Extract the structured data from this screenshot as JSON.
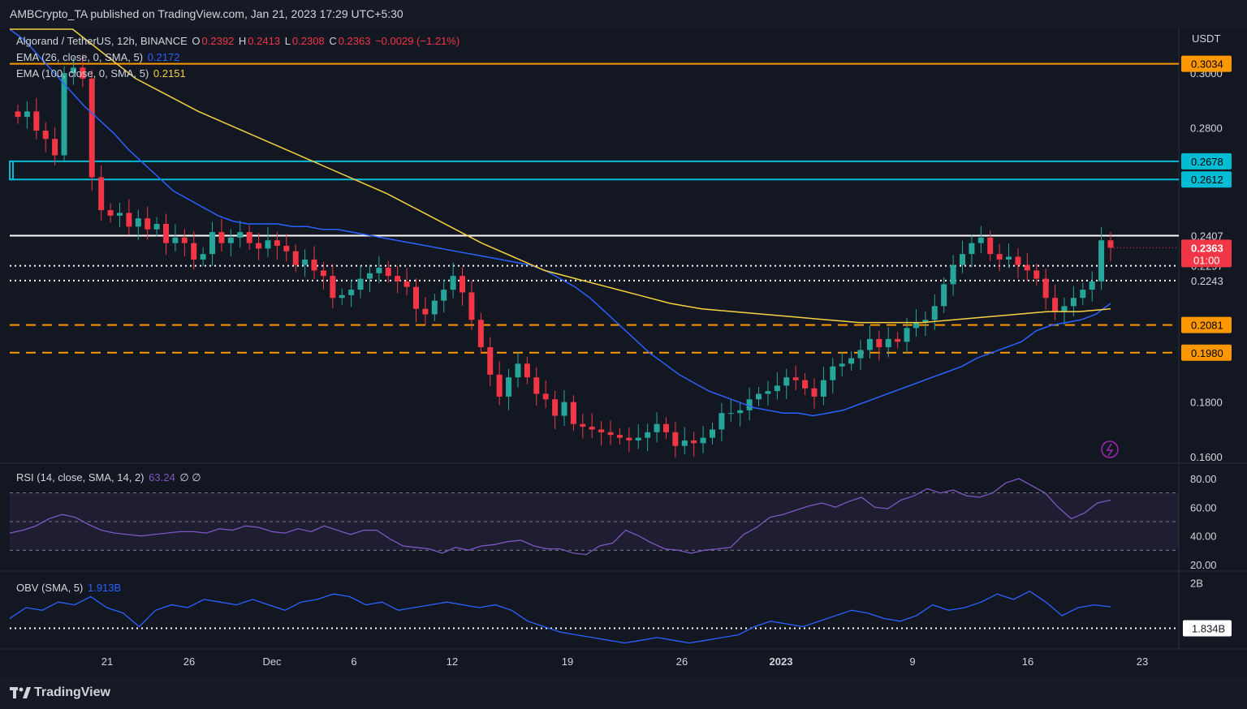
{
  "header": {
    "publisher": "AMBCrypto_TA published on TradingView.com, Jan 21, 2023 17:29 UTC+5:30"
  },
  "footer": {
    "brand": "TradingView"
  },
  "legend": {
    "symbol": "Algorand / TetherUS, 12h, BINANCE",
    "o_label": "O",
    "o": "0.2392",
    "h_label": "H",
    "h": "0.2413",
    "l_label": "L",
    "l": "0.2308",
    "c_label": "C",
    "c": "0.2363",
    "change": "−0.0029 (−1.21%)",
    "ema26_label": "EMA (26, close, 0, SMA, 5)",
    "ema26_value": "0.2172",
    "ema100_label": "EMA (100, close, 0, SMA, 5)",
    "ema100_value": "0.2151",
    "rsi_label": "RSI (14, close, SMA, 14, 2)",
    "rsi_value": "63.24",
    "rsi_extra": "∅ ∅",
    "obv_label": "OBV (SMA, 5)",
    "obv_value": "1.913B"
  },
  "colors": {
    "background": "#131722",
    "up": "#26a69a",
    "down": "#f23645",
    "ema26": "#2962ff",
    "ema100": "#f5d142",
    "orange": "#ff9800",
    "cyan": "#00bcd4",
    "rsi": "#7e57c2",
    "obv": "#2962ff"
  },
  "chart_data": [
    {
      "type": "candlestick",
      "title": "Algorand / TetherUS, 12h, BINANCE",
      "price_axis": {
        "label": "USDT",
        "ticks": [
          "0.3000",
          "0.2800",
          "0.1800",
          "0.1600"
        ],
        "range": [
          0.158,
          0.316
        ]
      },
      "x_ticks": [
        "21",
        "26",
        "Dec",
        "6",
        "12",
        "19",
        "26",
        "2023",
        "9",
        "16",
        "23"
      ],
      "levels": [
        {
          "value": 0.3034,
          "label": "0.3034",
          "style": "solid",
          "color": "orange"
        },
        {
          "value": 0.2678,
          "label": "0.2678",
          "style": "solid",
          "color": "cyan"
        },
        {
          "value": 0.2612,
          "label": "0.2612",
          "style": "solid",
          "color": "cyan"
        },
        {
          "value": 0.2407,
          "label": "0.2407",
          "style": "solid",
          "color": "white"
        },
        {
          "value": 0.2297,
          "label": "0.2297",
          "style": "dotted",
          "color": "white"
        },
        {
          "value": 0.2243,
          "label": "0.2243",
          "style": "dotted",
          "color": "white"
        },
        {
          "value": 0.2081,
          "label": "0.2081",
          "style": "dashed",
          "color": "orange"
        },
        {
          "value": 0.198,
          "label": "0.1980",
          "style": "dashed",
          "color": "orange"
        }
      ],
      "last_price": {
        "value": 0.2363,
        "label": "0.2363",
        "countdown": "01:00"
      },
      "close_series": [
        0.284,
        0.286,
        0.279,
        0.276,
        0.27,
        0.3,
        0.302,
        0.298,
        0.262,
        0.25,
        0.248,
        0.249,
        0.244,
        0.247,
        0.243,
        0.245,
        0.238,
        0.24,
        0.238,
        0.232,
        0.234,
        0.242,
        0.238,
        0.24,
        0.242,
        0.238,
        0.236,
        0.239,
        0.237,
        0.235,
        0.23,
        0.232,
        0.228,
        0.226,
        0.218,
        0.219,
        0.221,
        0.225,
        0.227,
        0.229,
        0.226,
        0.224,
        0.222,
        0.214,
        0.212,
        0.217,
        0.221,
        0.226,
        0.22,
        0.21,
        0.2,
        0.19,
        0.182,
        0.189,
        0.194,
        0.189,
        0.183,
        0.181,
        0.175,
        0.18,
        0.172,
        0.171,
        0.17,
        0.169,
        0.168,
        0.167,
        0.166,
        0.167,
        0.169,
        0.172,
        0.169,
        0.164,
        0.166,
        0.165,
        0.167,
        0.17,
        0.176,
        0.176,
        0.177,
        0.181,
        0.183,
        0.184,
        0.186,
        0.189,
        0.188,
        0.185,
        0.182,
        0.188,
        0.193,
        0.194,
        0.196,
        0.199,
        0.203,
        0.2,
        0.203,
        0.202,
        0.207,
        0.209,
        0.21,
        0.215,
        0.223,
        0.23,
        0.234,
        0.238,
        0.24,
        0.234,
        0.232,
        0.233,
        0.23,
        0.228,
        0.225,
        0.218,
        0.213,
        0.215,
        0.218,
        0.221,
        0.224,
        0.239,
        0.2363
      ],
      "ema26_series": [
        0.318,
        0.312,
        0.306,
        0.3,
        0.294,
        0.288,
        0.283,
        0.278,
        0.272,
        0.267,
        0.262,
        0.257,
        0.254,
        0.251,
        0.248,
        0.246,
        0.245,
        0.245,
        0.245,
        0.244,
        0.244,
        0.243,
        0.243,
        0.242,
        0.241,
        0.24,
        0.239,
        0.238,
        0.237,
        0.236,
        0.235,
        0.234,
        0.233,
        0.232,
        0.231,
        0.23,
        0.228,
        0.225,
        0.222,
        0.218,
        0.213,
        0.208,
        0.203,
        0.198,
        0.194,
        0.19,
        0.187,
        0.184,
        0.182,
        0.18,
        0.178,
        0.177,
        0.176,
        0.176,
        0.175,
        0.176,
        0.177,
        0.179,
        0.181,
        0.183,
        0.185,
        0.187,
        0.189,
        0.191,
        0.193,
        0.196,
        0.198,
        0.2,
        0.202,
        0.206,
        0.208,
        0.209,
        0.21,
        0.212,
        0.216
      ],
      "ema100_series": [
        0.338,
        0.328,
        0.318,
        0.307,
        0.298,
        0.292,
        0.286,
        0.281,
        0.276,
        0.271,
        0.266,
        0.261,
        0.256,
        0.25,
        0.244,
        0.238,
        0.233,
        0.228,
        0.225,
        0.222,
        0.219,
        0.216,
        0.214,
        0.213,
        0.212,
        0.211,
        0.21,
        0.209,
        0.209,
        0.209,
        0.21,
        0.211,
        0.212,
        0.213,
        0.213,
        0.214
      ],
      "rsi_axis": {
        "ticks": [
          "80.00",
          "60.00",
          "40.00",
          "20.00"
        ],
        "band": [
          30,
          70
        ]
      },
      "rsi_series": [
        42,
        44,
        47,
        52,
        55,
        53,
        48,
        44,
        42,
        41,
        40,
        41,
        42,
        43,
        43,
        42,
        45,
        44,
        47,
        46,
        43,
        42,
        45,
        43,
        47,
        44,
        41,
        44,
        44,
        38,
        33,
        32,
        31,
        28,
        32,
        30,
        33,
        34,
        36,
        37,
        33,
        31,
        31,
        28,
        27,
        33,
        35,
        44,
        40,
        35,
        31,
        30,
        28,
        30,
        31,
        32,
        41,
        46,
        53,
        55,
        58,
        61,
        63,
        60,
        64,
        67,
        60,
        59,
        65,
        68,
        73,
        70,
        72,
        68,
        67,
        70,
        77,
        80,
        75,
        70,
        60,
        52,
        56,
        63,
        65
      ],
      "obv_axis": {
        "ticks": [
          "2B"
        ],
        "marker": "1.834B"
      },
      "obv_series": [
        1.87,
        1.91,
        1.9,
        1.93,
        1.92,
        1.95,
        1.91,
        1.89,
        1.84,
        1.9,
        1.92,
        1.91,
        1.94,
        1.93,
        1.92,
        1.94,
        1.92,
        1.9,
        1.93,
        1.94,
        1.96,
        1.95,
        1.92,
        1.93,
        1.9,
        1.91,
        1.92,
        1.93,
        1.92,
        1.91,
        1.92,
        1.9,
        1.86,
        1.84,
        1.82,
        1.81,
        1.8,
        1.79,
        1.78,
        1.79,
        1.8,
        1.79,
        1.78,
        1.79,
        1.8,
        1.81,
        1.84,
        1.86,
        1.85,
        1.84,
        1.86,
        1.88,
        1.9,
        1.89,
        1.87,
        1.86,
        1.88,
        1.92,
        1.9,
        1.91,
        1.93,
        1.96,
        1.94,
        1.97,
        1.93,
        1.88,
        1.91,
        1.92,
        1.913
      ]
    }
  ]
}
